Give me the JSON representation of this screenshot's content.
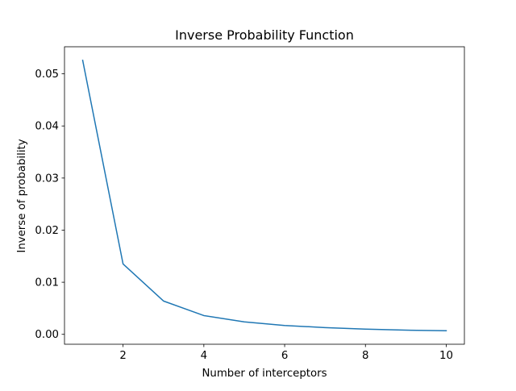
{
  "chart_data": {
    "type": "line",
    "title": "Inverse Probability Function",
    "xlabel": "Number of interceptors",
    "ylabel": "Inverse of probability",
    "xlim": [
      0.55,
      10.45
    ],
    "ylim": [
      -0.0019,
      0.0552
    ],
    "xticks": [
      2,
      4,
      6,
      8,
      10
    ],
    "xtick_labels": [
      "2",
      "4",
      "6",
      "8",
      "10"
    ],
    "yticks": [
      0.0,
      0.01,
      0.02,
      0.03,
      0.04,
      0.05
    ],
    "ytick_labels": [
      "0.00",
      "0.01",
      "0.02",
      "0.03",
      "0.04",
      "0.05"
    ],
    "grid": false,
    "legend": "none",
    "series": [
      {
        "color": "#1f77b4",
        "x": [
          1,
          2,
          3,
          4,
          5,
          6,
          7,
          8,
          9,
          10
        ],
        "values": [
          0.0526,
          0.0135,
          0.0064,
          0.0036,
          0.0024,
          0.0017,
          0.0013,
          0.001,
          0.0008,
          0.0007
        ]
      }
    ]
  }
}
